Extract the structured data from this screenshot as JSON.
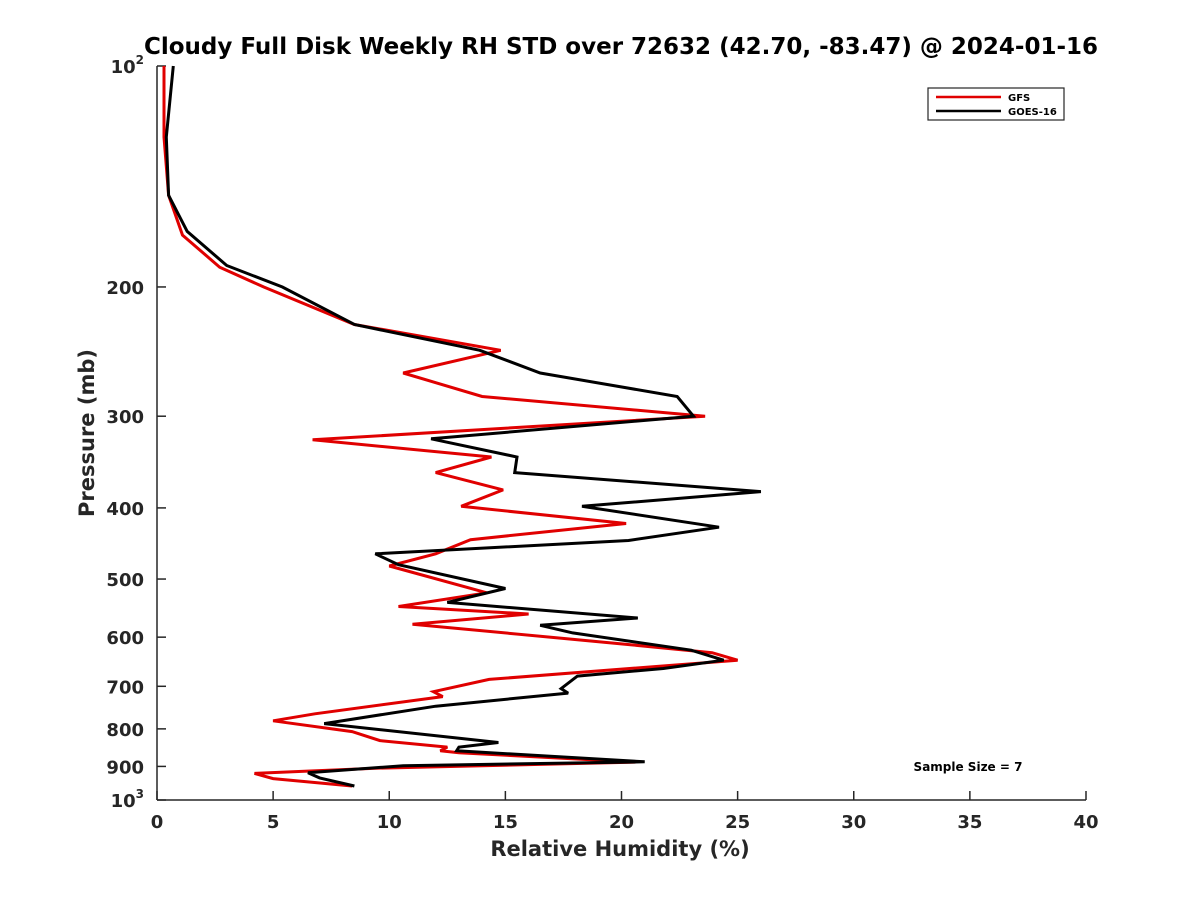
{
  "chart_data": {
    "type": "line",
    "title": "Cloudy Full Disk Weekly RH STD over 72632 (42.70, -83.47) @ 2024-01-16",
    "xlabel": "Relative Humidity (%)",
    "ylabel": "Pressure (mb)",
    "xlim": [
      0,
      40
    ],
    "ylim": [
      100,
      1000
    ],
    "y_scale": "log",
    "y_reversed": true,
    "grid": false,
    "legend_position": "top-right",
    "x_ticks": [
      "0",
      "5",
      "10",
      "15",
      "20",
      "25",
      "30",
      "35",
      "40"
    ],
    "y_ticks": [
      {
        "value": 100,
        "base": "10",
        "exp": "2"
      },
      {
        "value": 200,
        "label": "200"
      },
      {
        "value": 300,
        "label": "300"
      },
      {
        "value": 400,
        "label": "400"
      },
      {
        "value": 500,
        "label": "500"
      },
      {
        "value": 600,
        "label": "600"
      },
      {
        "value": 700,
        "label": "700"
      },
      {
        "value": 800,
        "label": "800"
      },
      {
        "value": 900,
        "label": "900"
      },
      {
        "value": 1000,
        "base": "10",
        "exp": "3"
      }
    ],
    "annotation": "Sample Size = 7",
    "series": [
      {
        "name": "GFS",
        "color": "#e00000",
        "points": [
          [
            0.3,
            100
          ],
          [
            0.3,
            125
          ],
          [
            0.5,
            150
          ],
          [
            1.1,
            170
          ],
          [
            2.7,
            188
          ],
          [
            4.6,
            200
          ],
          [
            8.5,
            225
          ],
          [
            14.8,
            244
          ],
          [
            10.6,
            262
          ],
          [
            14.0,
            282
          ],
          [
            23.6,
            300
          ],
          [
            6.7,
            323
          ],
          [
            14.4,
            341
          ],
          [
            12.0,
            358
          ],
          [
            14.9,
            378
          ],
          [
            13.1,
            398
          ],
          [
            20.2,
            420
          ],
          [
            13.5,
            442
          ],
          [
            12.0,
            462
          ],
          [
            10.0,
            480
          ],
          [
            14.2,
            522
          ],
          [
            10.4,
            545
          ],
          [
            16.0,
            558
          ],
          [
            11.0,
            576
          ],
          [
            20.5,
            615
          ],
          [
            23.9,
            630
          ],
          [
            25.0,
            645
          ],
          [
            14.3,
            685
          ],
          [
            11.9,
            712
          ],
          [
            12.3,
            723
          ],
          [
            6.8,
            763
          ],
          [
            5.0,
            780
          ],
          [
            8.4,
            807
          ],
          [
            9.6,
            830
          ],
          [
            12.5,
            847
          ],
          [
            12.2,
            857
          ],
          [
            13.0,
            862
          ],
          [
            20.6,
            888
          ],
          [
            9.4,
            905
          ],
          [
            4.2,
            920
          ],
          [
            5.0,
            935
          ],
          [
            8.4,
            957
          ]
        ]
      },
      {
        "name": "GOES-16",
        "color": "#000000",
        "points": [
          [
            0.7,
            100
          ],
          [
            0.4,
            125
          ],
          [
            0.5,
            150
          ],
          [
            1.3,
            168
          ],
          [
            3.0,
            187
          ],
          [
            5.4,
            200
          ],
          [
            8.5,
            225
          ],
          [
            13.9,
            244
          ],
          [
            16.5,
            262
          ],
          [
            22.4,
            282
          ],
          [
            23.1,
            300
          ],
          [
            11.8,
            322
          ],
          [
            15.5,
            341
          ],
          [
            15.4,
            358
          ],
          [
            26.0,
            380
          ],
          [
            18.3,
            398
          ],
          [
            24.2,
            425
          ],
          [
            20.3,
            443
          ],
          [
            9.4,
            462
          ],
          [
            10.4,
            478
          ],
          [
            15.0,
            515
          ],
          [
            12.5,
            538
          ],
          [
            20.7,
            565
          ],
          [
            16.5,
            578
          ],
          [
            17.9,
            592
          ],
          [
            23.0,
            625
          ],
          [
            24.4,
            645
          ],
          [
            21.8,
            662
          ],
          [
            18.1,
            678
          ],
          [
            17.4,
            705
          ],
          [
            17.7,
            715
          ],
          [
            12.0,
            745
          ],
          [
            7.2,
            787
          ],
          [
            14.7,
            835
          ],
          [
            13.0,
            847
          ],
          [
            12.9,
            857
          ],
          [
            21.0,
            887
          ],
          [
            10.6,
            898
          ],
          [
            6.5,
            918
          ],
          [
            7.0,
            933
          ],
          [
            8.5,
            957
          ]
        ]
      }
    ]
  }
}
